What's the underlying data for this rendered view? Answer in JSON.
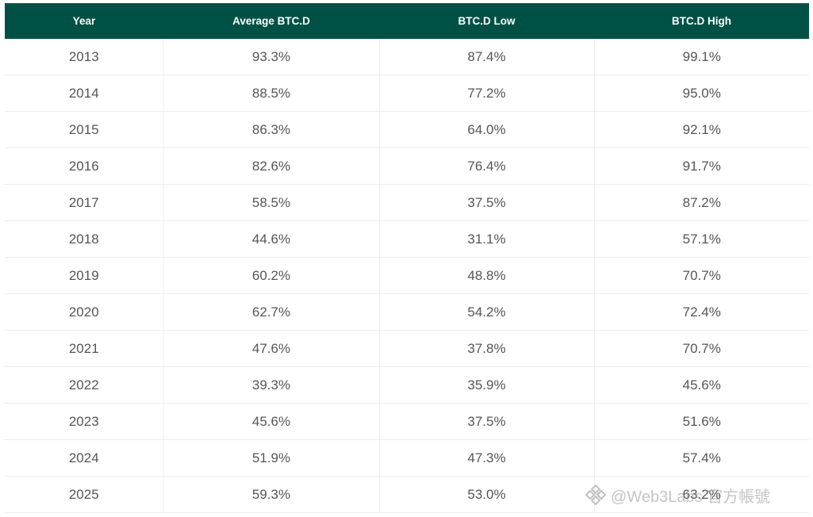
{
  "chart_data": {
    "type": "table",
    "columns": [
      "Year",
      "Average BTC.D",
      "BTC.D Low",
      "BTC.D High"
    ],
    "rows": [
      [
        "2013",
        "93.3%",
        "87.4%",
        "99.1%"
      ],
      [
        "2014",
        "88.5%",
        "77.2%",
        "95.0%"
      ],
      [
        "2015",
        "86.3%",
        "64.0%",
        "92.1%"
      ],
      [
        "2016",
        "82.6%",
        "76.4%",
        "91.7%"
      ],
      [
        "2017",
        "58.5%",
        "37.5%",
        "87.2%"
      ],
      [
        "2018",
        "44.6%",
        "31.1%",
        "57.1%"
      ],
      [
        "2019",
        "60.2%",
        "48.8%",
        "70.7%"
      ],
      [
        "2020",
        "62.7%",
        "54.2%",
        "72.4%"
      ],
      [
        "2021",
        "47.6%",
        "37.8%",
        "70.7%"
      ],
      [
        "2022",
        "39.3%",
        "35.9%",
        "45.6%"
      ],
      [
        "2023",
        "45.6%",
        "37.5%",
        "51.6%"
      ],
      [
        "2024",
        "51.9%",
        "47.3%",
        "57.4%"
      ],
      [
        "2025",
        "59.3%",
        "53.0%",
        "63.2%"
      ]
    ]
  },
  "colors": {
    "header_bg": "#005145",
    "header_text": "#ffffff",
    "cell_text": "#555555"
  },
  "watermark": {
    "text": "@Web3Labs 官方帳號",
    "icon": "binance-logo-icon"
  }
}
